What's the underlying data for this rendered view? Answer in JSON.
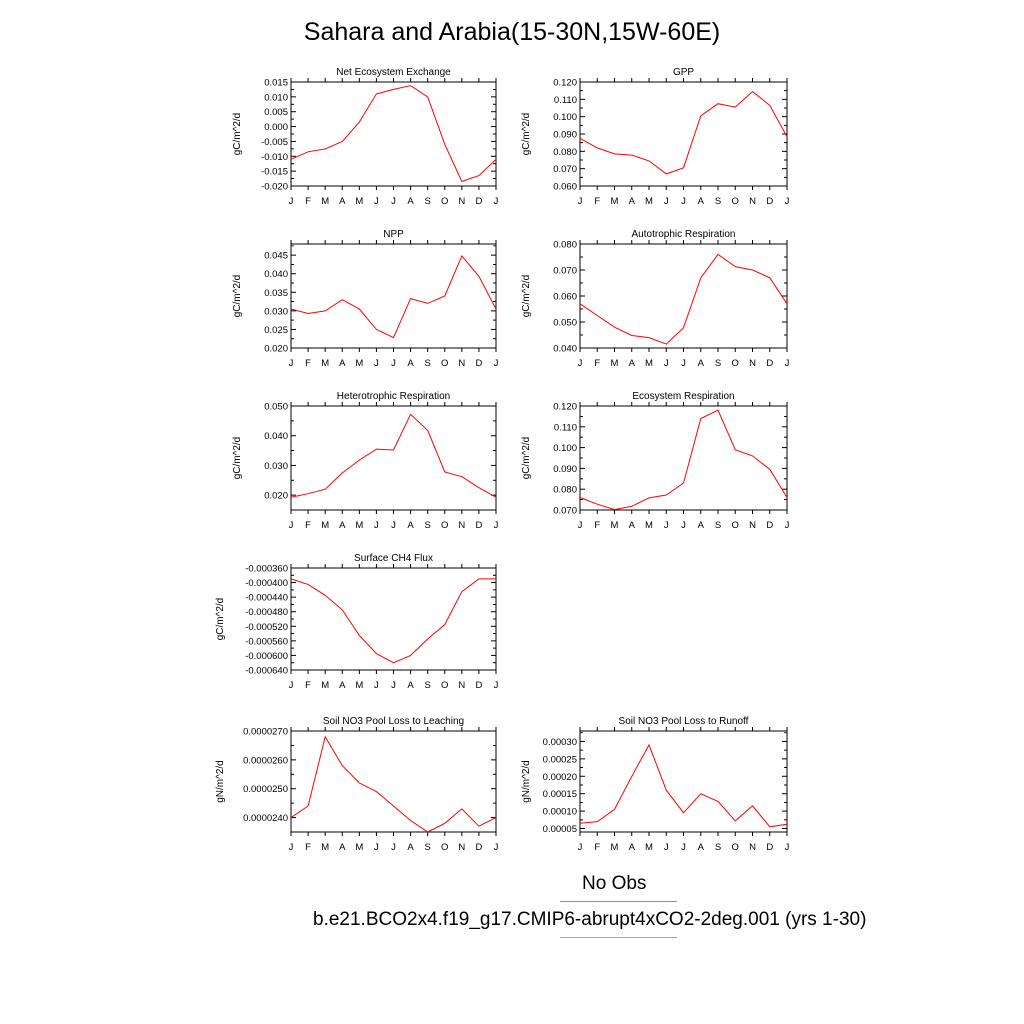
{
  "title": "Sahara and Arabia(15-30N,15W-60E)",
  "months": [
    "J",
    "F",
    "M",
    "A",
    "M",
    "J",
    "J",
    "A",
    "S",
    "O",
    "N",
    "D",
    "J"
  ],
  "legend": [
    {
      "label": "No Obs",
      "color": "#8080ff"
    },
    {
      "label": "b.e21.BCO2x4.f19_g17.CMIP6-abrupt4xCO2-2deg.001 (yrs 1-30)",
      "color": "#ff8080"
    }
  ],
  "line_color": "#ff0000",
  "chart_data": [
    {
      "type": "line",
      "title": "Net Ecosystem Exchange",
      "ylabel": "gC/m^2/d",
      "ylim": [
        -0.02,
        0.015
      ],
      "yticks": [
        "-0.020",
        "-0.015",
        "-0.010",
        "-0.005",
        "0.000",
        "0.005",
        "0.010",
        "0.015"
      ],
      "values": [
        -0.011,
        -0.0085,
        -0.0075,
        -0.005,
        0.0015,
        0.011,
        0.0125,
        0.0138,
        0.01,
        -0.006,
        -0.0185,
        -0.0165,
        -0.011
      ]
    },
    {
      "type": "line",
      "title": "GPP",
      "ylabel": "gC/m^2/d",
      "ylim": [
        0.06,
        0.12
      ],
      "yticks": [
        "0.060",
        "0.070",
        "0.080",
        "0.090",
        "0.100",
        "0.110",
        "0.120"
      ],
      "values": [
        0.0875,
        0.082,
        0.0785,
        0.0778,
        0.0745,
        0.067,
        0.0705,
        0.1005,
        0.1075,
        0.1055,
        0.1145,
        0.1065,
        0.0885
      ]
    },
    {
      "type": "line",
      "title": "NPP",
      "ylabel": "gC/m^2/d",
      "ylim": [
        0.02,
        0.048
      ],
      "yticks": [
        "0.020",
        "0.025",
        "0.030",
        "0.035",
        "0.040",
        "0.045"
      ],
      "values": [
        0.0305,
        0.0293,
        0.03,
        0.033,
        0.0305,
        0.025,
        0.0228,
        0.0333,
        0.032,
        0.034,
        0.0448,
        0.0393,
        0.0305
      ]
    },
    {
      "type": "line",
      "title": "Autotrophic Respiration",
      "ylabel": "gC/m^2/d",
      "ylim": [
        0.04,
        0.08
      ],
      "yticks": [
        "0.040",
        "0.050",
        "0.060",
        "0.070",
        "0.080"
      ],
      "values": [
        0.057,
        0.0525,
        0.048,
        0.0448,
        0.044,
        0.0415,
        0.0478,
        0.067,
        0.076,
        0.0713,
        0.07,
        0.067,
        0.057
      ]
    },
    {
      "type": "line",
      "title": "Heterotrophic Respiration",
      "ylabel": "gC/m^2/d",
      "ylim": [
        0.015,
        0.05
      ],
      "yticks": [
        "0.020",
        "0.030",
        "0.040",
        "0.050"
      ],
      "values": [
        0.0193,
        0.0205,
        0.022,
        0.0275,
        0.0318,
        0.0355,
        0.0352,
        0.0472,
        0.0418,
        0.0278,
        0.0262,
        0.0225,
        0.0193
      ]
    },
    {
      "type": "line",
      "title": "Ecosystem Respiration",
      "ylabel": "gC/m^2/d",
      "ylim": [
        0.07,
        0.12
      ],
      "yticks": [
        "0.070",
        "0.080",
        "0.090",
        "0.100",
        "0.110",
        "0.120"
      ],
      "values": [
        0.076,
        0.0728,
        0.0702,
        0.0718,
        0.0758,
        0.0772,
        0.083,
        0.114,
        0.118,
        0.099,
        0.096,
        0.0895,
        0.076
      ]
    },
    {
      "type": "line",
      "title": "Surface CH4 Flux",
      "ylabel": "gC/m^2/d",
      "ylim": [
        -0.00064,
        -0.00036
      ],
      "yticks": [
        "-0.000640",
        "-0.000600",
        "-0.000560",
        "-0.000520",
        "-0.000480",
        "-0.000440",
        "-0.000400",
        "-0.000360"
      ],
      "values": [
        -0.00039,
        -0.000405,
        -0.000435,
        -0.000475,
        -0.000545,
        -0.000595,
        -0.00062,
        -0.0006,
        -0.000555,
        -0.000515,
        -0.000425,
        -0.00039,
        -0.00039
      ]
    },
    {
      "type": "line",
      "title": "Soil NO3 Pool Loss to Leaching",
      "ylabel": "gN/m^2/d",
      "ylim": [
        2.35e-05,
        2.7e-05
      ],
      "yticks": [
        "0.0000240",
        "0.0000250",
        "0.0000260",
        "0.0000270"
      ],
      "values": [
        2.4e-05,
        2.44e-05,
        2.68e-05,
        2.58e-05,
        2.52e-05,
        2.49e-05,
        2.44e-05,
        2.39e-05,
        2.35e-05,
        2.38e-05,
        2.43e-05,
        2.37e-05,
        2.4e-05
      ]
    },
    {
      "type": "line",
      "title": "Soil NO3 Pool Loss to Runoff",
      "ylabel": "gN/m^2/d",
      "ylim": [
        4e-05,
        0.00033
      ],
      "yticks": [
        "0.00005",
        "0.00010",
        "0.00015",
        "0.00020",
        "0.00025",
        "0.00030"
      ],
      "values": [
        6.5e-05,
        7e-05,
        0.000105,
        0.0002,
        0.00029,
        0.00016,
        9.5e-05,
        0.00015,
        0.000128,
        7.2e-05,
        0.000115,
        5.5e-05,
        6.2e-05
      ]
    }
  ]
}
